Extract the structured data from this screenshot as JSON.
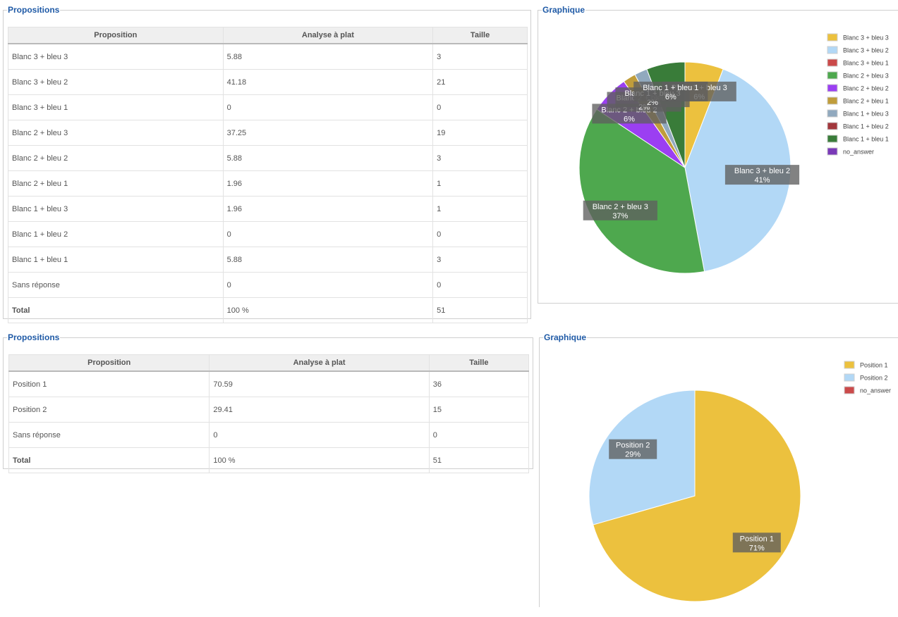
{
  "panel1": {
    "legend": "Propositions",
    "headers": [
      "Proposition",
      "Analyse à plat",
      "Taille"
    ],
    "rows": [
      [
        "Blanc 3 + bleu 3",
        "5.88",
        "3"
      ],
      [
        "Blanc 3 + bleu 2",
        "41.18",
        "21"
      ],
      [
        "Blanc 3 + bleu 1",
        "0",
        "0"
      ],
      [
        "Blanc 2 + bleu 3",
        "37.25",
        "19"
      ],
      [
        "Blanc 2 + bleu 2",
        "5.88",
        "3"
      ],
      [
        "Blanc 2 + bleu 1",
        "1.96",
        "1"
      ],
      [
        "Blanc 1 + bleu 3",
        "1.96",
        "1"
      ],
      [
        "Blanc 1 + bleu 2",
        "0",
        "0"
      ],
      [
        "Blanc 1 + bleu 1",
        "5.88",
        "3"
      ],
      [
        "Sans réponse",
        "0",
        "0"
      ]
    ],
    "total": [
      "Total",
      "100 %",
      "51"
    ]
  },
  "panel2": {
    "legend": "Graphique"
  },
  "panel3": {
    "legend": "Propositions",
    "headers": [
      "Proposition",
      "Analyse à plat",
      "Taille"
    ],
    "rows": [
      [
        "Position 1",
        "70.59",
        "36"
      ],
      [
        "Position 2",
        "29.41",
        "15"
      ],
      [
        "Sans réponse",
        "0",
        "0"
      ]
    ],
    "total": [
      "Total",
      "100 %",
      "51"
    ]
  },
  "panel4": {
    "legend": "Graphique"
  },
  "chart_data": [
    {
      "type": "pie",
      "title": "",
      "categories": [
        "Blanc 3 + bleu 3",
        "Blanc 3 + bleu 2",
        "Blanc 3 + bleu 1",
        "Blanc 2 + bleu 3",
        "Blanc 2 + bleu 2",
        "Blanc 2 + bleu 1",
        "Blanc 1 + bleu 3",
        "Blanc 1 + bleu 2",
        "Blanc 1 + bleu 1",
        "no_answer"
      ],
      "values": [
        3,
        21,
        0,
        19,
        3,
        1,
        1,
        0,
        3,
        0
      ],
      "percent_labels": [
        "6%",
        "41%",
        "0%",
        "37%",
        "6%",
        "2%",
        "2%",
        "0%",
        "6%",
        "0%"
      ],
      "colors": [
        "#ecc13e",
        "#b2d8f6",
        "#cb4a4a",
        "#4ea84e",
        "#9b3ff2",
        "#c09d3b",
        "#91a9be",
        "#a2373c",
        "#397c39",
        "#7a3ab8"
      ],
      "legend_position": "top-right"
    },
    {
      "type": "pie",
      "title": "",
      "categories": [
        "Position 1",
        "Position 2",
        "no_answer"
      ],
      "values": [
        36,
        15,
        0
      ],
      "percent_labels": [
        "71%",
        "29%",
        "0%"
      ],
      "colors": [
        "#ecc13e",
        "#b2d8f6",
        "#cb4a4a"
      ],
      "legend_position": "top-right"
    }
  ]
}
